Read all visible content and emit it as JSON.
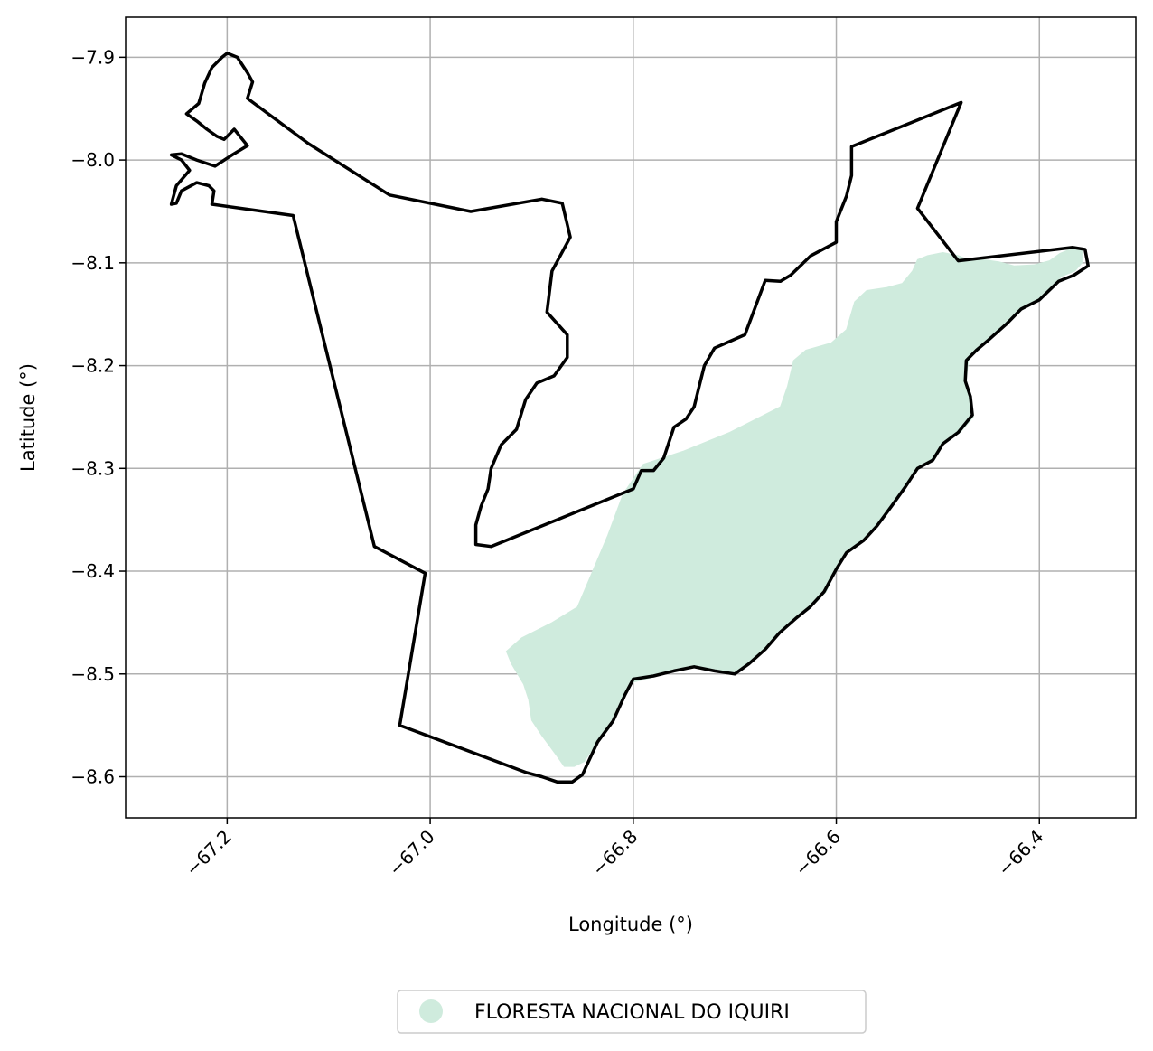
{
  "chart_data": {
    "type": "map",
    "xlabel": "Longitude (°)",
    "ylabel": "Latitude (°)",
    "xlim": [
      -67.3,
      -66.305
    ],
    "ylim": [
      -8.64,
      -7.861
    ],
    "grid": true,
    "x_ticks": [
      {
        "value": -67.2,
        "label": "−67.2"
      },
      {
        "value": -67.0,
        "label": "−67.0"
      },
      {
        "value": -66.8,
        "label": "−66.8"
      },
      {
        "value": -66.6,
        "label": "−66.6"
      },
      {
        "value": -66.4,
        "label": "−66.4"
      }
    ],
    "y_ticks": [
      {
        "value": -7.9,
        "label": "−7.9"
      },
      {
        "value": -8.0,
        "label": "−8.0"
      },
      {
        "value": -8.1,
        "label": "−8.1"
      },
      {
        "value": -8.2,
        "label": "−8.2"
      },
      {
        "value": -8.3,
        "label": "−8.3"
      },
      {
        "value": -8.4,
        "label": "−8.4"
      },
      {
        "value": -8.5,
        "label": "−8.5"
      },
      {
        "value": -8.6,
        "label": "−8.6"
      }
    ],
    "colors": {
      "fill": "#cfebdd",
      "outline": "#000000",
      "grid": "#b0b0b0"
    },
    "legend": {
      "placement": "bottom-center",
      "entries": [
        {
          "name": "FLORESTA NACIONAL DO IQUIRI",
          "color": "#cfebdd",
          "marker": "circle"
        }
      ]
    },
    "layers": [
      {
        "kind": "fill",
        "color": "#cfebdd",
        "coordinates": [
          [
            -66.48,
            -8.093
          ],
          [
            -66.47,
            -8.097
          ],
          [
            -66.455,
            -8.097
          ],
          [
            -66.44,
            -8.099
          ],
          [
            -66.425,
            -8.103
          ],
          [
            -66.405,
            -8.102
          ],
          [
            -66.39,
            -8.098
          ],
          [
            -66.38,
            -8.091
          ],
          [
            -66.37,
            -8.087
          ],
          [
            -66.358,
            -8.086
          ],
          [
            -66.358,
            -8.1
          ],
          [
            -66.365,
            -8.108
          ],
          [
            -66.378,
            -8.113
          ],
          [
            -66.39,
            -8.125
          ],
          [
            -66.4,
            -8.135
          ],
          [
            -66.413,
            -8.14
          ],
          [
            -66.425,
            -8.15
          ],
          [
            -66.435,
            -8.16
          ],
          [
            -66.45,
            -8.175
          ],
          [
            -66.46,
            -8.182
          ],
          [
            -66.47,
            -8.195
          ],
          [
            -66.472,
            -8.215
          ],
          [
            -66.468,
            -8.23
          ],
          [
            -66.465,
            -8.25
          ],
          [
            -66.478,
            -8.265
          ],
          [
            -66.495,
            -8.275
          ],
          [
            -66.505,
            -8.29
          ],
          [
            -66.52,
            -8.3
          ],
          [
            -66.532,
            -8.318
          ],
          [
            -66.545,
            -8.335
          ],
          [
            -66.56,
            -8.355
          ],
          [
            -66.572,
            -8.37
          ],
          [
            -66.59,
            -8.38
          ],
          [
            -66.6,
            -8.398
          ],
          [
            -66.61,
            -8.42
          ],
          [
            -66.625,
            -8.435
          ],
          [
            -66.64,
            -8.445
          ],
          [
            -66.655,
            -8.46
          ],
          [
            -66.67,
            -8.475
          ],
          [
            -66.685,
            -8.49
          ],
          [
            -66.7,
            -8.5
          ],
          [
            -66.72,
            -8.497
          ],
          [
            -66.74,
            -8.493
          ],
          [
            -66.76,
            -8.497
          ],
          [
            -66.78,
            -8.503
          ],
          [
            -66.8,
            -8.508
          ],
          [
            -66.81,
            -8.52
          ],
          [
            -66.822,
            -8.545
          ],
          [
            -66.835,
            -8.565
          ],
          [
            -66.848,
            -8.585
          ],
          [
            -66.858,
            -8.59
          ],
          [
            -66.868,
            -8.59
          ],
          [
            -66.875,
            -8.58
          ],
          [
            -66.89,
            -8.56
          ],
          [
            -66.9,
            -8.545
          ],
          [
            -66.903,
            -8.525
          ],
          [
            -66.908,
            -8.51
          ],
          [
            -66.92,
            -8.49
          ],
          [
            -66.925,
            -8.478
          ],
          [
            -66.91,
            -8.465
          ],
          [
            -66.88,
            -8.45
          ],
          [
            -66.855,
            -8.435
          ],
          [
            -66.84,
            -8.4
          ],
          [
            -66.825,
            -8.365
          ],
          [
            -66.81,
            -8.325
          ],
          [
            -66.79,
            -8.296
          ],
          [
            -66.75,
            -8.283
          ],
          [
            -66.705,
            -8.265
          ],
          [
            -66.655,
            -8.24
          ],
          [
            -66.648,
            -8.22
          ],
          [
            -66.642,
            -8.195
          ],
          [
            -66.63,
            -8.185
          ],
          [
            -66.605,
            -8.178
          ],
          [
            -66.59,
            -8.165
          ],
          [
            -66.582,
            -8.138
          ],
          [
            -66.57,
            -8.127
          ],
          [
            -66.55,
            -8.124
          ],
          [
            -66.535,
            -8.12
          ],
          [
            -66.525,
            -8.108
          ],
          [
            -66.52,
            -8.097
          ],
          [
            -66.51,
            -8.093
          ],
          [
            -66.495,
            -8.09
          ],
          [
            -66.48,
            -8.093
          ]
        ]
      },
      {
        "kind": "outline",
        "color": "#000000",
        "coordinates": [
          [
            -67.2,
            -7.896
          ],
          [
            -67.19,
            -7.9
          ],
          [
            -67.18,
            -7.915
          ],
          [
            -67.175,
            -7.924
          ],
          [
            -67.18,
            -7.94
          ],
          [
            -67.12,
            -7.984
          ],
          [
            -67.04,
            -8.034
          ],
          [
            -66.96,
            -8.05
          ],
          [
            -66.89,
            -8.038
          ],
          [
            -66.87,
            -8.042
          ],
          [
            -66.862,
            -8.075
          ],
          [
            -66.88,
            -8.108
          ],
          [
            -66.885,
            -8.148
          ],
          [
            -66.865,
            -8.17
          ],
          [
            -66.865,
            -8.192
          ],
          [
            -66.878,
            -8.21
          ],
          [
            -66.895,
            -8.217
          ],
          [
            -66.906,
            -8.233
          ],
          [
            -66.915,
            -8.262
          ],
          [
            -66.93,
            -8.277
          ],
          [
            -66.94,
            -8.3
          ],
          [
            -66.943,
            -8.32
          ],
          [
            -66.95,
            -8.337
          ],
          [
            -66.955,
            -8.355
          ],
          [
            -66.955,
            -8.374
          ],
          [
            -66.94,
            -8.376
          ],
          [
            -66.8,
            -8.32
          ],
          [
            -66.792,
            -8.302
          ],
          [
            -66.78,
            -8.302
          ],
          [
            -66.77,
            -8.29
          ],
          [
            -66.76,
            -8.26
          ],
          [
            -66.748,
            -8.252
          ],
          [
            -66.74,
            -8.24
          ],
          [
            -66.735,
            -8.22
          ],
          [
            -66.73,
            -8.2
          ],
          [
            -66.72,
            -8.183
          ],
          [
            -66.69,
            -8.17
          ],
          [
            -66.67,
            -8.117
          ],
          [
            -66.655,
            -8.118
          ],
          [
            -66.645,
            -8.112
          ],
          [
            -66.625,
            -8.093
          ],
          [
            -66.6,
            -8.08
          ],
          [
            -66.6,
            -8.06
          ],
          [
            -66.59,
            -8.035
          ],
          [
            -66.585,
            -8.015
          ],
          [
            -66.585,
            -7.987
          ],
          [
            -66.477,
            -7.944
          ],
          [
            -66.52,
            -8.047
          ],
          [
            -66.48,
            -8.098
          ],
          [
            -66.367,
            -8.085
          ],
          [
            -66.355,
            -8.087
          ],
          [
            -66.352,
            -8.103
          ],
          [
            -66.366,
            -8.112
          ],
          [
            -66.381,
            -8.118
          ],
          [
            -66.4,
            -8.136
          ],
          [
            -66.418,
            -8.145
          ],
          [
            -66.433,
            -8.16
          ],
          [
            -66.45,
            -8.175
          ],
          [
            -66.462,
            -8.185
          ],
          [
            -66.472,
            -8.195
          ],
          [
            -66.473,
            -8.215
          ],
          [
            -66.468,
            -8.23
          ],
          [
            -66.466,
            -8.248
          ],
          [
            -66.48,
            -8.265
          ],
          [
            -66.495,
            -8.276
          ],
          [
            -66.505,
            -8.292
          ],
          [
            -66.52,
            -8.3
          ],
          [
            -66.532,
            -8.318
          ],
          [
            -66.545,
            -8.336
          ],
          [
            -66.56,
            -8.356
          ],
          [
            -66.573,
            -8.37
          ],
          [
            -66.59,
            -8.382
          ],
          [
            -66.6,
            -8.398
          ],
          [
            -66.612,
            -8.42
          ],
          [
            -66.626,
            -8.435
          ],
          [
            -66.64,
            -8.446
          ],
          [
            -66.656,
            -8.46
          ],
          [
            -66.67,
            -8.476
          ],
          [
            -66.686,
            -8.49
          ],
          [
            -66.7,
            -8.5
          ],
          [
            -66.72,
            -8.497
          ],
          [
            -66.74,
            -8.493
          ],
          [
            -66.76,
            -8.497
          ],
          [
            -66.78,
            -8.502
          ],
          [
            -66.8,
            -8.505
          ],
          [
            -66.808,
            -8.52
          ],
          [
            -66.82,
            -8.546
          ],
          [
            -66.835,
            -8.566
          ],
          [
            -66.844,
            -8.585
          ],
          [
            -66.85,
            -8.598
          ],
          [
            -66.86,
            -8.605
          ],
          [
            -66.875,
            -8.605
          ],
          [
            -66.89,
            -8.6
          ],
          [
            -66.905,
            -8.596
          ],
          [
            -67.03,
            -8.55
          ],
          [
            -67.005,
            -8.402
          ],
          [
            -67.055,
            -8.376
          ],
          [
            -67.135,
            -8.054
          ],
          [
            -67.215,
            -8.043
          ],
          [
            -67.213,
            -8.03
          ],
          [
            -67.218,
            -8.025
          ],
          [
            -67.23,
            -8.022
          ],
          [
            -67.245,
            -8.03
          ],
          [
            -67.25,
            -8.042
          ],
          [
            -67.255,
            -8.043
          ],
          [
            -67.25,
            -8.025
          ],
          [
            -67.237,
            -8.01
          ],
          [
            -67.245,
            -8.0
          ],
          [
            -67.255,
            -7.995
          ],
          [
            -67.245,
            -7.994
          ],
          [
            -67.23,
            -8.0
          ],
          [
            -67.212,
            -8.006
          ],
          [
            -67.195,
            -7.995
          ],
          [
            -67.18,
            -7.986
          ],
          [
            -67.193,
            -7.97
          ],
          [
            -67.203,
            -7.98
          ],
          [
            -67.21,
            -7.977
          ],
          [
            -67.22,
            -7.97
          ],
          [
            -67.23,
            -7.962
          ],
          [
            -67.24,
            -7.955
          ],
          [
            -67.228,
            -7.945
          ],
          [
            -67.222,
            -7.925
          ],
          [
            -67.215,
            -7.91
          ],
          [
            -67.205,
            -7.9
          ],
          [
            -67.2,
            -7.896
          ]
        ]
      }
    ]
  }
}
